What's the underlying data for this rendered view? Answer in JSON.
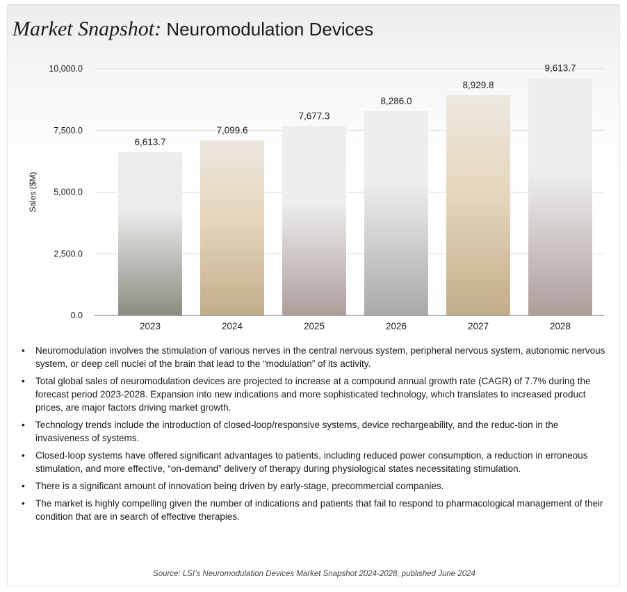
{
  "title": {
    "emphasis": "Market Snapshot:",
    "rest": "Neuromodulation Devices"
  },
  "colors": {
    "bar_gray_top": "#ececec",
    "bar_gray_bottom": "#8c8c82",
    "bar_tan_top": "#ece8e0",
    "bar_tan_mid": "#e6d6bc",
    "bar_tan_bottom": "#c2ad8a",
    "bar_mauve_top": "#eeeeee",
    "bar_mauve_bottom": "#ad9e9b",
    "bar_silver_top": "#eeeeee",
    "bar_silver_bottom": "#a9a9a9",
    "grid": "#d8d8d8",
    "axis": "#8a8a8a",
    "text": "#1a1a1a"
  },
  "chart_data": {
    "type": "bar",
    "title": "Market Snapshot: Neuromodulation Devices",
    "xlabel": "",
    "ylabel": "Sales ($M)",
    "ylim": [
      0,
      10000
    ],
    "yticks": [
      0,
      2500,
      5000,
      7500,
      10000
    ],
    "ytick_labels": [
      "0.0",
      "2,500.0",
      "5,000.0",
      "7,500.0",
      "10,000.0"
    ],
    "grid": true,
    "categories": [
      "2023",
      "2024",
      "2025",
      "2026",
      "2027",
      "2028"
    ],
    "values": [
      6613.7,
      7099.6,
      7677.3,
      8286.0,
      8929.8,
      9613.7
    ],
    "value_labels": [
      "6,613.7",
      "7,099.6",
      "7,677.3",
      "8,286.0",
      "8,929.8",
      "9,613.7"
    ],
    "bar_styles": [
      "gray",
      "tan",
      "mauve",
      "silver",
      "tan",
      "mauve"
    ]
  },
  "bullets": [
    "Neuromodulation involves the stimulation of various nerves in the central nervous system, peripheral nervous system, autonomic nervous system, or deep cell nuclei of the brain that lead to the “modulation” of its activity.",
    "Total global sales of neuromodulation devices are projected to increase at a compound annual growth rate (CAGR) of 7.7% during the forecast period 2023-2028. Expansion into new indications and more sophisticated technology, which translates to increased product prices, are major factors driving market growth.",
    "Technology trends include the introduction of closed-loop/responsive systems, device rechargeability, and the reduc-tion in the invasiveness of systems.",
    "Closed-loop systems have offered significant advantages to patients, including reduced power consumption, a reduction in erroneous stimulation, and more effective, “on-demand” delivery of therapy during physiological states necessitating stimulation.",
    "There is a significant amount of innovation being driven by early-stage, precommercial companies.",
    "The market is highly compelling given the number of indications and patients that fail to respond to pharmacological management of their condition that are in search of effective therapies."
  ],
  "bullet_glyph": "•",
  "source": "Source: LSI’s Neuromodulation Devices Market Snapshot 2024-2028, published June 2024"
}
